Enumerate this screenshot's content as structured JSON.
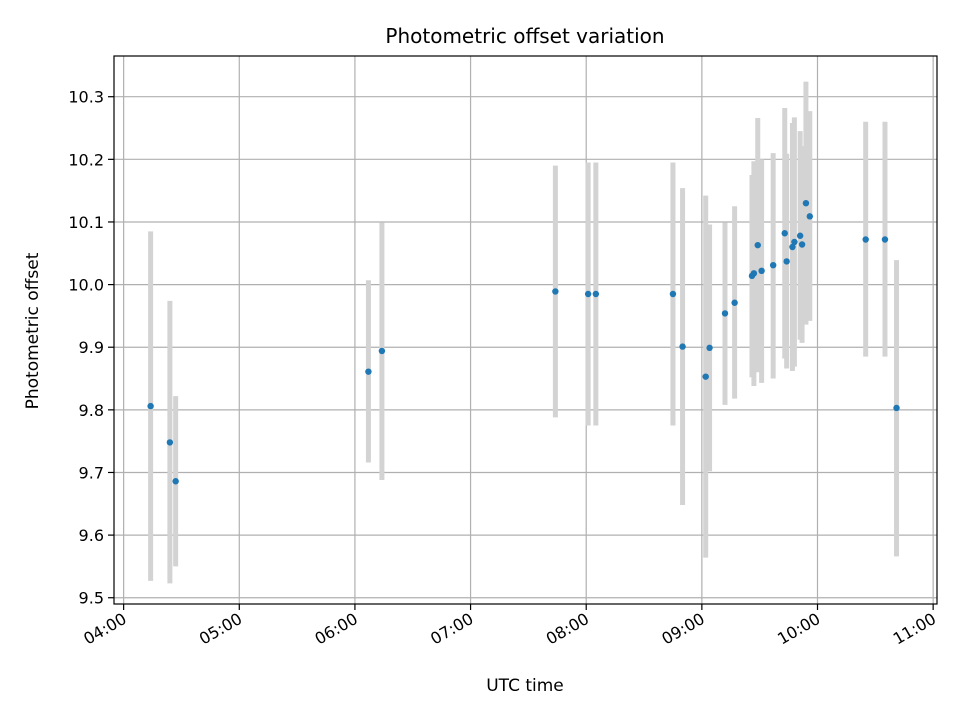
{
  "chart_data": {
    "type": "scatter",
    "title": "Photometric offset variation",
    "xlabel": "UTC time",
    "ylabel": "Photometric offset",
    "xlim": [
      "03:55",
      "11:02"
    ],
    "ylim": [
      9.49,
      10.365
    ],
    "x_ticks": [
      "04:00",
      "05:00",
      "06:00",
      "07:00",
      "08:00",
      "09:00",
      "10:00",
      "11:00"
    ],
    "y_ticks": [
      "9.5",
      "9.6",
      "9.7",
      "9.8",
      "9.9",
      "10.0",
      "10.1",
      "10.2",
      "10.3"
    ],
    "grid": true,
    "colors": {
      "marker": "#1f77b4",
      "errorbar": "#d3d3d3",
      "grid": "#b0b0b0",
      "axes": "#000000"
    },
    "series": [
      {
        "points": [
          {
            "x": "04:14",
            "y": 9.806,
            "ylo": 9.527,
            "yhi": 10.085
          },
          {
            "x": "04:24",
            "y": 9.748,
            "ylo": 9.523,
            "yhi": 9.974
          },
          {
            "x": "04:27",
            "y": 9.686,
            "ylo": 9.55,
            "yhi": 9.822
          },
          {
            "x": "06:07",
            "y": 9.861,
            "ylo": 9.716,
            "yhi": 10.007
          },
          {
            "x": "06:14",
            "y": 9.894,
            "ylo": 9.688,
            "yhi": 10.099
          },
          {
            "x": "07:44",
            "y": 9.989,
            "ylo": 9.788,
            "yhi": 10.19
          },
          {
            "x": "08:01",
            "y": 9.985,
            "ylo": 9.775,
            "yhi": 10.195
          },
          {
            "x": "08:05",
            "y": 9.985,
            "ylo": 9.775,
            "yhi": 10.195
          },
          {
            "x": "08:45",
            "y": 9.985,
            "ylo": 9.775,
            "yhi": 10.195
          },
          {
            "x": "08:50",
            "y": 9.901,
            "ylo": 9.648,
            "yhi": 10.154
          },
          {
            "x": "09:02",
            "y": 9.853,
            "ylo": 9.564,
            "yhi": 10.142
          },
          {
            "x": "09:04",
            "y": 9.899,
            "ylo": 9.702,
            "yhi": 10.096
          },
          {
            "x": "09:12",
            "y": 9.954,
            "ylo": 9.808,
            "yhi": 10.099
          },
          {
            "x": "09:17",
            "y": 9.971,
            "ylo": 9.818,
            "yhi": 10.125
          },
          {
            "x": "09:26",
            "y": 10.014,
            "ylo": 9.852,
            "yhi": 10.175
          },
          {
            "x": "09:27",
            "y": 10.018,
            "ylo": 9.838,
            "yhi": 10.197
          },
          {
            "x": "09:29",
            "y": 10.063,
            "ylo": 9.86,
            "yhi": 10.266
          },
          {
            "x": "09:31",
            "y": 10.022,
            "ylo": 9.843,
            "yhi": 10.2
          },
          {
            "x": "09:37",
            "y": 10.031,
            "ylo": 9.85,
            "yhi": 10.21
          },
          {
            "x": "09:43",
            "y": 10.082,
            "ylo": 9.882,
            "yhi": 10.282
          },
          {
            "x": "09:44",
            "y": 10.037,
            "ylo": 9.866,
            "yhi": 10.209
          },
          {
            "x": "09:47",
            "y": 10.06,
            "ylo": 9.862,
            "yhi": 10.258
          },
          {
            "x": "09:48",
            "y": 10.068,
            "ylo": 9.869,
            "yhi": 10.267
          },
          {
            "x": "09:51",
            "y": 10.078,
            "ylo": 9.912,
            "yhi": 10.245
          },
          {
            "x": "09:52",
            "y": 10.064,
            "ylo": 9.907,
            "yhi": 10.221
          },
          {
            "x": "09:54",
            "y": 10.13,
            "ylo": 9.936,
            "yhi": 10.324
          },
          {
            "x": "09:56",
            "y": 10.109,
            "ylo": 9.942,
            "yhi": 10.277
          },
          {
            "x": "10:25",
            "y": 10.072,
            "ylo": 9.885,
            "yhi": 10.26
          },
          {
            "x": "10:35",
            "y": 10.072,
            "ylo": 9.885,
            "yhi": 10.26
          },
          {
            "x": "10:41",
            "y": 9.803,
            "ylo": 9.566,
            "yhi": 10.039
          }
        ]
      }
    ]
  }
}
